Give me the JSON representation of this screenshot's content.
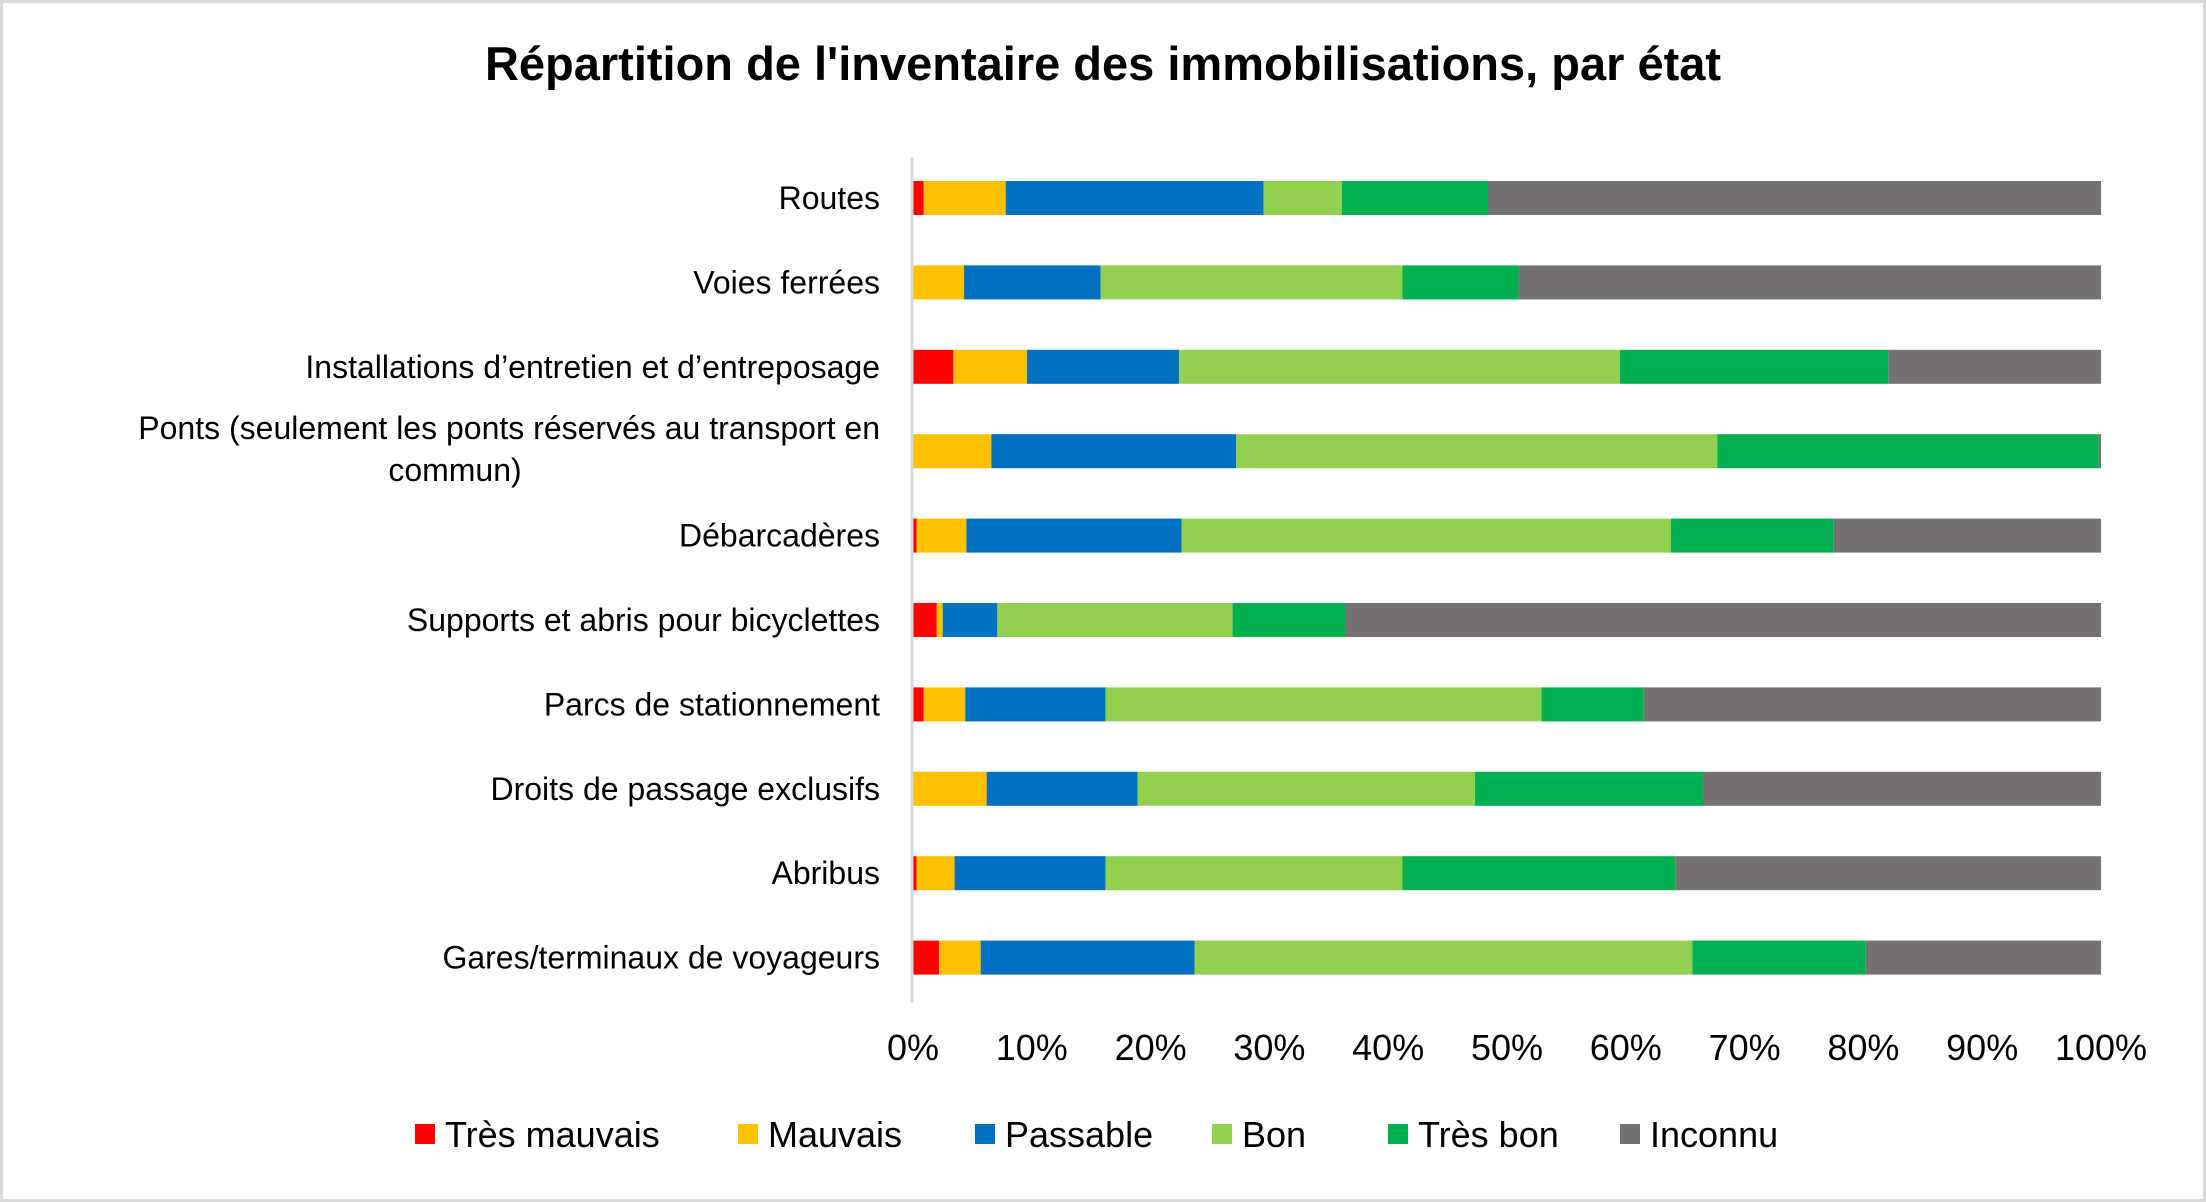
{
  "chart_data": {
    "type": "bar",
    "orientation": "horizontal",
    "stacked": "percent",
    "title": "Répartition de l'inventaire des immobilisations, par état",
    "xlabel": "",
    "ylabel": "",
    "xlim": [
      0,
      100
    ],
    "x_ticks": [
      "0%",
      "10%",
      "20%",
      "30%",
      "40%",
      "50%",
      "60%",
      "70%",
      "80%",
      "90%",
      "100%"
    ],
    "grid": false,
    "legend_position": "bottom",
    "categories": [
      "Routes",
      "Voies ferrées",
      "Installations d’entretien et d’entreposage",
      "Ponts (seulement les ponts réservés au transport en commun)",
      "Débarcadères",
      "Supports et abris pour bicyclettes",
      "Parcs de stationnement",
      "Droits de passage exclusifs",
      "Abribus",
      "Gares/terminaux de voyageurs"
    ],
    "category_label_lines": [
      [
        "Routes"
      ],
      [
        "Voies ferrées"
      ],
      [
        "Installations d’entretien et d’entreposage"
      ],
      [
        "Ponts (seulement les ponts réservés au transport en",
        "commun)"
      ],
      [
        "Débarcadères"
      ],
      [
        "Supports et abris pour bicyclettes"
      ],
      [
        "Parcs de stationnement"
      ],
      [
        "Droits de passage exclusifs"
      ],
      [
        "Abribus"
      ],
      [
        "Gares/terminaux de voyageurs"
      ]
    ],
    "series": [
      {
        "name": "Très mauvais",
        "color": "#ff0000",
        "values": [
          0.9,
          0.0,
          3.4,
          0.0,
          0.3,
          2.0,
          0.9,
          0.0,
          0.3,
          2.2
        ]
      },
      {
        "name": "Mauvais",
        "color": "#ffc000",
        "values": [
          6.9,
          4.3,
          6.2,
          6.6,
          4.2,
          0.5,
          3.5,
          6.2,
          3.2,
          3.5
        ]
      },
      {
        "name": "Passable",
        "color": "#0070c0",
        "values": [
          21.7,
          11.5,
          12.8,
          20.6,
          18.1,
          4.6,
          11.8,
          12.7,
          12.7,
          18.0
        ]
      },
      {
        "name": "Bon",
        "color": "#92d050",
        "values": [
          6.6,
          25.4,
          37.1,
          40.5,
          41.2,
          19.8,
          36.7,
          28.4,
          25.0,
          41.9
        ]
      },
      {
        "name": "Très bon",
        "color": "#00b050",
        "values": [
          12.3,
          9.8,
          22.6,
          32.1,
          13.7,
          9.5,
          8.6,
          19.2,
          23.0,
          14.6
        ]
      },
      {
        "name": "Inconnu",
        "color": "#767171",
        "values": [
          51.6,
          49.0,
          17.9,
          0.2,
          22.5,
          63.6,
          38.5,
          33.5,
          35.8,
          19.8
        ]
      }
    ]
  }
}
